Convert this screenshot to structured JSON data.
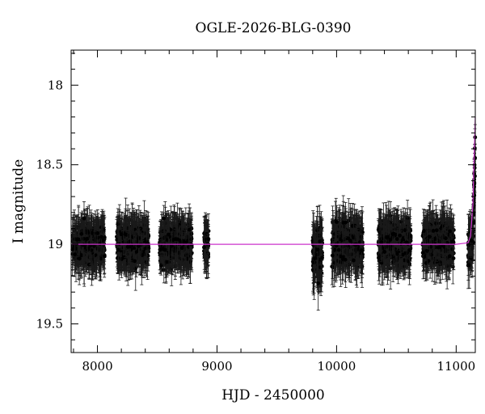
{
  "chart_data": {
    "type": "scatter",
    "title": "OGLE-2026-BLG-0390",
    "xlabel": "HJD - 2450000",
    "ylabel": "I magnitude",
    "xlim": [
      7780,
      11160
    ],
    "ylim": [
      19.68,
      17.78
    ],
    "y_inverted": true,
    "x_ticks": [
      8000,
      9000,
      10000,
      11000
    ],
    "y_ticks": [
      18,
      18.5,
      19,
      19.5
    ],
    "x_tick_labels": [
      "8000",
      "9000",
      "10000",
      "11000"
    ],
    "y_tick_labels": [
      "18",
      "18.5",
      "19",
      "19.5"
    ],
    "grid": false,
    "baseline_mag": 19.0,
    "seasons": [
      {
        "start": 7790,
        "end": 8060,
        "mean_mag": 19.0,
        "scatter": 0.09,
        "mean_error": 0.1
      },
      {
        "start": 8160,
        "end": 8430,
        "mean_mag": 19.0,
        "scatter": 0.09,
        "mean_error": 0.1
      },
      {
        "start": 8520,
        "end": 8790,
        "mean_mag": 19.0,
        "scatter": 0.09,
        "mean_error": 0.1
      },
      {
        "start": 8890,
        "end": 8930,
        "mean_mag": 19.0,
        "scatter": 0.09,
        "mean_error": 0.1
      },
      {
        "start": 9800,
        "end": 9880,
        "mean_mag": 19.05,
        "scatter": 0.12,
        "mean_error": 0.12
      },
      {
        "start": 9960,
        "end": 10220,
        "mean_mag": 19.0,
        "scatter": 0.1,
        "mean_error": 0.1
      },
      {
        "start": 10350,
        "end": 10620,
        "mean_mag": 19.0,
        "scatter": 0.1,
        "mean_error": 0.1
      },
      {
        "start": 10720,
        "end": 10980,
        "mean_mag": 19.0,
        "scatter": 0.1,
        "mean_error": 0.1
      },
      {
        "start": 11100,
        "end": 11160,
        "mean_mag": 18.85,
        "scatter": 0.15,
        "mean_error": 0.1
      }
    ],
    "model_curve": {
      "color": "#cc33cc",
      "x": [
        7780,
        11000,
        11100,
        11120,
        11140,
        11150,
        11160
      ],
      "y": [
        19.0,
        19.0,
        18.99,
        18.95,
        18.75,
        18.45,
        18.2
      ]
    },
    "colors": {
      "points": "#000000",
      "model": "#cc33cc"
    }
  }
}
